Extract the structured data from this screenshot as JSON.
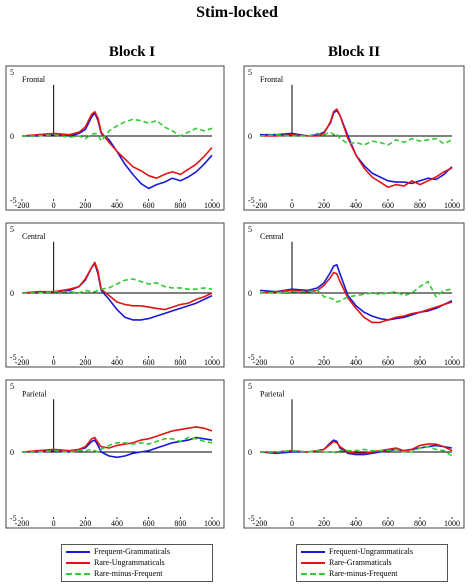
{
  "title": "Stim-locked",
  "blocks": [
    {
      "title": "Block I"
    },
    {
      "title": "Block II"
    }
  ],
  "colors": {
    "blue": "#1a1ad6",
    "red": "#e01515",
    "green": "#33cc33"
  },
  "legends": [
    {
      "items": [
        {
          "label": "Frequent-Grammaticals",
          "color": "#1a1ad6",
          "style": "solid"
        },
        {
          "label": "Rare-Ungrammaticals",
          "color": "#e01515",
          "style": "solid"
        },
        {
          "label": "Rare-minus-Frequent",
          "color": "#33cc33",
          "style": "dashed"
        }
      ]
    },
    {
      "items": [
        {
          "label": "Frequent-Ungrammaticals",
          "color": "#1a1ad6",
          "style": "solid"
        },
        {
          "label": "Rare-Grammaticals",
          "color": "#e01515",
          "style": "solid"
        },
        {
          "label": "Rare-minus-Frequent",
          "color": "#33cc33",
          "style": "dashed"
        }
      ]
    }
  ],
  "chart_data": [
    {
      "type": "line",
      "block": "Block I",
      "site": "Frontal",
      "xlim": [
        -200,
        1000
      ],
      "ylim": [
        -5,
        5
      ],
      "xticks": [
        "-200",
        "0",
        "200",
        "400",
        "600",
        "800",
        "1000"
      ],
      "yticks": [
        "5",
        "0",
        "-5"
      ],
      "x": [
        -200,
        -100,
        0,
        100,
        160,
        200,
        240,
        260,
        280,
        300,
        350,
        400,
        450,
        500,
        550,
        600,
        650,
        700,
        750,
        800,
        850,
        900,
        950,
        1000
      ],
      "series": [
        {
          "name": "blue",
          "values": [
            0,
            0,
            0.1,
            0,
            0.2,
            0.5,
            1.5,
            1.8,
            1.2,
            0.2,
            -0.3,
            -1.2,
            -2.2,
            -3,
            -3.7,
            -4.1,
            -3.8,
            -3.6,
            -3.3,
            -3.5,
            -3.2,
            -2.8,
            -2.2,
            -1.5
          ]
        },
        {
          "name": "red",
          "values": [
            0,
            0.1,
            0.2,
            0.1,
            0.3,
            0.7,
            1.7,
            1.9,
            1.4,
            0.3,
            -0.5,
            -1.2,
            -1.8,
            -2.4,
            -2.7,
            -3.1,
            -3.3,
            -3,
            -2.8,
            -3,
            -2.6,
            -2.2,
            -1.6,
            -0.9
          ]
        },
        {
          "name": "green",
          "values": [
            0,
            0,
            0.1,
            -0.1,
            0,
            -0.2,
            0.1,
            0.2,
            0.1,
            -0.4,
            0.4,
            0.8,
            1.1,
            1.3,
            1.2,
            1,
            1.2,
            0.7,
            0.4,
            0,
            0.3,
            0.6,
            0.4,
            0.6
          ]
        }
      ]
    },
    {
      "type": "line",
      "block": "Block II",
      "site": "Frontal",
      "xlim": [
        -200,
        1000
      ],
      "ylim": [
        -5,
        5
      ],
      "xticks": [
        "-200",
        "0",
        "200",
        "400",
        "600",
        "800",
        "1000"
      ],
      "yticks": [
        "5",
        "0",
        "-5"
      ],
      "x": [
        -200,
        -100,
        0,
        100,
        160,
        200,
        240,
        260,
        280,
        300,
        350,
        400,
        450,
        500,
        550,
        600,
        650,
        700,
        750,
        800,
        850,
        900,
        950,
        1000
      ],
      "series": [
        {
          "name": "blue",
          "values": [
            0.1,
            0.1,
            0.2,
            0,
            0.1,
            0.3,
            1,
            1.8,
            2,
            1.6,
            0,
            -1.5,
            -2.3,
            -2.9,
            -3.2,
            -3.5,
            -3.6,
            -3.6,
            -3.7,
            -3.5,
            -3.3,
            -3.4,
            -3,
            -2.4
          ]
        },
        {
          "name": "red",
          "values": [
            0,
            0,
            0.1,
            0,
            0,
            0.2,
            1.1,
            1.9,
            2.1,
            1.6,
            -0.2,
            -1.5,
            -2.5,
            -3.2,
            -3.6,
            -4,
            -3.8,
            -3.9,
            -3.5,
            -3.8,
            -3.5,
            -3.2,
            -2.8,
            -2.5
          ]
        },
        {
          "name": "green",
          "values": [
            0,
            0.1,
            0,
            0,
            0.2,
            0.1,
            0.3,
            0.1,
            0.2,
            -0.2,
            -0.6,
            -0.5,
            -0.7,
            -0.4,
            -0.5,
            -0.7,
            -0.3,
            -0.5,
            -0.2,
            -0.4,
            -0.3,
            -0.2,
            -0.6,
            -0.3
          ]
        }
      ]
    },
    {
      "type": "line",
      "block": "Block I",
      "site": "Central",
      "xlim": [
        -200,
        1000
      ],
      "ylim": [
        -5,
        5
      ],
      "xticks": [
        "-200",
        "0",
        "200",
        "400",
        "600",
        "800",
        "1000"
      ],
      "yticks": [
        "5",
        "0",
        "-5"
      ],
      "x": [
        -200,
        -100,
        0,
        100,
        160,
        200,
        240,
        260,
        280,
        300,
        350,
        400,
        450,
        500,
        550,
        600,
        650,
        700,
        750,
        800,
        850,
        900,
        950,
        1000
      ],
      "series": [
        {
          "name": "blue",
          "values": [
            0,
            0,
            0.1,
            0.2,
            0.5,
            1,
            2,
            2.3,
            1.5,
            0.2,
            -0.5,
            -1.3,
            -1.9,
            -2.1,
            -2.1,
            -2,
            -1.8,
            -1.6,
            -1.4,
            -1.2,
            -1,
            -0.8,
            -0.5,
            -0.2
          ]
        },
        {
          "name": "red",
          "values": [
            0,
            0.1,
            0.1,
            0.3,
            0.5,
            1.1,
            2,
            2.4,
            1.7,
            0.3,
            -0.2,
            -0.7,
            -0.9,
            -1,
            -1,
            -1.1,
            -1.2,
            -1.3,
            -1.1,
            -0.9,
            -0.8,
            -0.5,
            -0.3,
            0
          ]
        },
        {
          "name": "green",
          "values": [
            0,
            0,
            0.1,
            0.1,
            0,
            0.2,
            0.1,
            0.1,
            0.2,
            0.3,
            0.4,
            0.7,
            1,
            1.1,
            0.9,
            0.7,
            0.8,
            0.5,
            0.4,
            0.4,
            0.3,
            0.3,
            0.4,
            0.3
          ]
        }
      ]
    },
    {
      "type": "line",
      "block": "Block II",
      "site": "Central",
      "xlim": [
        -200,
        1000
      ],
      "ylim": [
        -5,
        5
      ],
      "xticks": [
        "-200",
        "0",
        "200",
        "400",
        "600",
        "800",
        "1000"
      ],
      "yticks": [
        "5",
        "0",
        "-5"
      ],
      "x": [
        -200,
        -100,
        0,
        100,
        160,
        200,
        240,
        260,
        280,
        300,
        350,
        400,
        450,
        500,
        550,
        600,
        650,
        700,
        750,
        800,
        850,
        900,
        950,
        1000
      ],
      "series": [
        {
          "name": "blue",
          "values": [
            0.2,
            0.1,
            0.3,
            0.2,
            0.4,
            0.8,
            1.6,
            2.1,
            2.2,
            1.5,
            -0.2,
            -1,
            -1.5,
            -1.8,
            -2,
            -2.1,
            -2,
            -1.9,
            -1.7,
            -1.5,
            -1.4,
            -1.2,
            -0.9,
            -0.6
          ]
        },
        {
          "name": "red",
          "values": [
            0,
            0.1,
            0.2,
            0.1,
            0.2,
            0.6,
            1.2,
            1.6,
            1.5,
            0.9,
            -0.4,
            -1.2,
            -1.9,
            -2.3,
            -2.3,
            -2.1,
            -1.9,
            -1.8,
            -1.6,
            -1.5,
            -1.3,
            -1.1,
            -0.9,
            -0.7
          ]
        },
        {
          "name": "green",
          "values": [
            0,
            0,
            0.1,
            0.1,
            0.2,
            -0.3,
            -0.4,
            -0.5,
            -0.7,
            -0.6,
            -0.3,
            -0.2,
            -0.1,
            0,
            -0.1,
            0,
            0.1,
            -0.2,
            0,
            0.5,
            0.9,
            -0.3,
            0.2,
            0.3
          ]
        }
      ]
    },
    {
      "type": "line",
      "block": "Block I",
      "site": "Parietal",
      "xlim": [
        -200,
        1000
      ],
      "ylim": [
        -5,
        5
      ],
      "xticks": [
        "-200",
        "0",
        "200",
        "400",
        "600",
        "800",
        "1000"
      ],
      "yticks": [
        "5",
        "0",
        "-5"
      ],
      "x": [
        -200,
        -100,
        0,
        100,
        160,
        200,
        240,
        260,
        280,
        300,
        350,
        400,
        450,
        500,
        550,
        600,
        650,
        700,
        750,
        800,
        850,
        900,
        950,
        1000
      ],
      "series": [
        {
          "name": "blue",
          "values": [
            0,
            0,
            0.1,
            0,
            0.2,
            0.3,
            0.8,
            0.9,
            0.5,
            0,
            -0.3,
            -0.4,
            -0.3,
            -0.1,
            0,
            0.1,
            0.3,
            0.5,
            0.7,
            0.8,
            0.9,
            1.1,
            1,
            0.9
          ]
        },
        {
          "name": "red",
          "values": [
            0,
            0.1,
            0.2,
            0.1,
            0.2,
            0.4,
            1,
            1.1,
            0.7,
            0.4,
            0.3,
            0.5,
            0.6,
            0.7,
            0.9,
            1,
            1.2,
            1.4,
            1.6,
            1.7,
            1.8,
            1.9,
            1.8,
            1.6
          ]
        },
        {
          "name": "green",
          "values": [
            0,
            0,
            0.1,
            0,
            0.1,
            0.1,
            0.2,
            0.1,
            0,
            0.2,
            0.5,
            0.7,
            0.7,
            0.6,
            0.7,
            0.6,
            0.8,
            1,
            1,
            0.8,
            1.1,
            1,
            0.8,
            0.7
          ]
        }
      ]
    },
    {
      "type": "line",
      "block": "Block II",
      "site": "Parietal",
      "xlim": [
        -200,
        1000
      ],
      "ylim": [
        -5,
        5
      ],
      "xticks": [
        "-200",
        "0",
        "200",
        "400",
        "600",
        "800",
        "1000"
      ],
      "yticks": [
        "5",
        "0",
        "-5"
      ],
      "x": [
        -200,
        -100,
        0,
        100,
        160,
        200,
        240,
        260,
        280,
        300,
        350,
        400,
        450,
        500,
        550,
        600,
        650,
        700,
        750,
        800,
        850,
        900,
        950,
        1000
      ],
      "series": [
        {
          "name": "blue",
          "values": [
            0,
            -0.1,
            0,
            0,
            0.1,
            0.2,
            0.7,
            0.9,
            0.8,
            0.3,
            -0.1,
            -0.2,
            -0.2,
            -0.1,
            0,
            0.1,
            0.2,
            0.1,
            0.2,
            0.3,
            0.4,
            0.5,
            0.4,
            0.3
          ]
        },
        {
          "name": "red",
          "values": [
            0,
            0,
            0.1,
            0,
            0.1,
            0.2,
            0.6,
            0.8,
            0.7,
            0.4,
            0,
            -0.1,
            -0.1,
            0,
            0.1,
            0.2,
            0.3,
            0.1,
            0.2,
            0.5,
            0.6,
            0.6,
            0.4,
            0.1
          ]
        },
        {
          "name": "green",
          "values": [
            0,
            0,
            0.1,
            0,
            0.1,
            0,
            0,
            0,
            -0.1,
            0.1,
            0.1,
            0.1,
            0.2,
            0.1,
            0.1,
            0.1,
            0.2,
            0,
            0,
            0.3,
            0.4,
            0.2,
            0.1,
            -0.3
          ]
        }
      ]
    }
  ]
}
